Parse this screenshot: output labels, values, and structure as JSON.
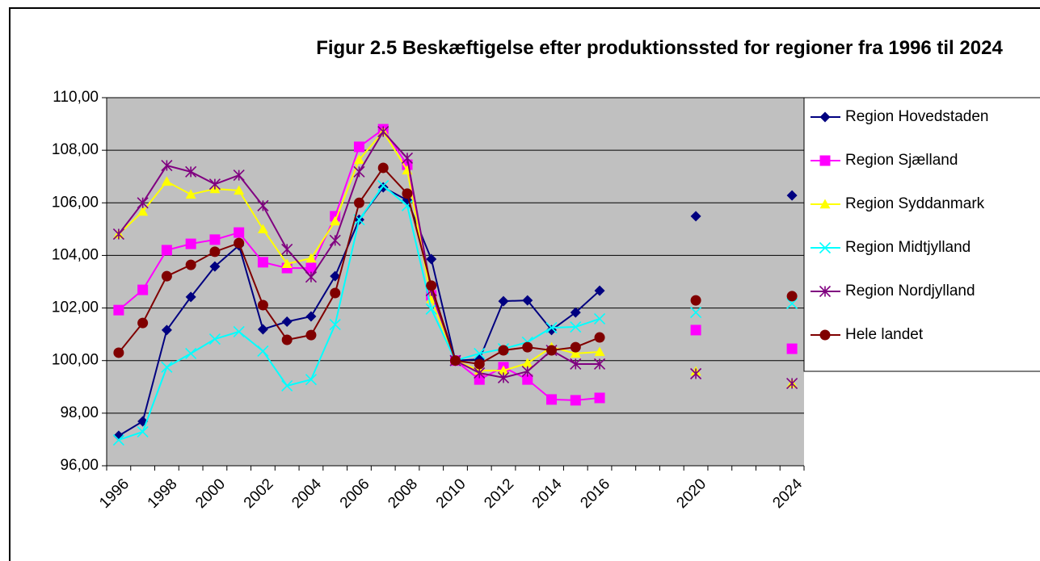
{
  "chart_data": {
    "type": "line",
    "title": "Figur 2.5 Beskæftigelse efter produktionssted for regioner fra 1996 til 2024",
    "categories": [
      "1996",
      null,
      "1998",
      null,
      "2000",
      null,
      "2002",
      null,
      "2004",
      null,
      "2006",
      null,
      "2008",
      null,
      "2010",
      null,
      "2012",
      null,
      "2014",
      null,
      "2016",
      null,
      null,
      null,
      "2020",
      null,
      null,
      null,
      "2024"
    ],
    "ylim": [
      96,
      110
    ],
    "yticks": [
      {
        "value": 96,
        "label": "96,00"
      },
      {
        "value": 98,
        "label": "98,00"
      },
      {
        "value": 100,
        "label": "100,00"
      },
      {
        "value": 102,
        "label": "102,00"
      },
      {
        "value": 104,
        "label": "104,00"
      },
      {
        "value": 106,
        "label": "106,00"
      },
      {
        "value": 108,
        "label": "108,00"
      },
      {
        "value": 110,
        "label": "110,00"
      }
    ],
    "grid": true,
    "legend": "right",
    "series": [
      {
        "name": "Region Hovedstaden",
        "color": "#000080",
        "marker": "diamond",
        "values": [
          97.14,
          97.69,
          101.16,
          102.42,
          103.58,
          104.38,
          101.19,
          101.48,
          101.68,
          103.21,
          105.36,
          106.59,
          106.1,
          103.86,
          100.0,
          100.05,
          102.26,
          102.29,
          101.16,
          101.83,
          102.66,
          null,
          null,
          null,
          105.49,
          null,
          null,
          null,
          106.28
        ]
      },
      {
        "name": "Region Sjælland",
        "color": "#ff00ff",
        "marker": "square",
        "values": [
          101.92,
          102.69,
          104.2,
          104.44,
          104.6,
          104.87,
          103.74,
          103.52,
          103.52,
          105.49,
          108.13,
          108.8,
          107.45,
          102.48,
          100.0,
          99.28,
          99.75,
          99.28,
          98.52,
          98.49,
          98.58,
          null,
          null,
          null,
          101.16,
          null,
          null,
          null,
          100.45
        ]
      },
      {
        "name": "Region Syddanmark",
        "color": "#ffff00",
        "marker": "triangle",
        "values": [
          104.81,
          105.67,
          106.81,
          106.32,
          106.53,
          106.47,
          105.0,
          103.68,
          103.89,
          105.3,
          107.64,
          108.71,
          107.24,
          102.35,
          100.0,
          99.62,
          99.62,
          99.9,
          100.51,
          100.27,
          100.33,
          null,
          null,
          null,
          99.59,
          null,
          null,
          null,
          99.13
        ]
      },
      {
        "name": "Region Midtjylland",
        "color": "#00ffff",
        "marker": "x",
        "values": [
          96.98,
          97.29,
          99.75,
          100.27,
          100.82,
          101.1,
          100.36,
          99.04,
          99.28,
          101.37,
          105.36,
          106.65,
          105.89,
          101.96,
          100.0,
          100.27,
          100.45,
          100.7,
          101.25,
          101.28,
          101.59,
          null,
          null,
          null,
          101.83,
          null,
          null,
          null,
          102.17
        ]
      },
      {
        "name": "Region Nordjylland",
        "color": "#800080",
        "marker": "star",
        "values": [
          104.81,
          106.0,
          107.42,
          107.18,
          106.71,
          107.05,
          105.89,
          104.23,
          103.18,
          104.57,
          107.18,
          108.71,
          107.7,
          102.66,
          100.0,
          99.53,
          99.35,
          99.59,
          100.39,
          99.87,
          99.87,
          null,
          null,
          null,
          99.5,
          null,
          null,
          null,
          99.13
        ]
      },
      {
        "name": "Hele landet",
        "color": "#800000",
        "marker": "circle",
        "values": [
          100.3,
          101.43,
          103.21,
          103.64,
          104.14,
          104.47,
          102.11,
          100.79,
          100.97,
          102.57,
          106.0,
          107.33,
          106.35,
          102.85,
          100.0,
          99.87,
          100.39,
          100.51,
          100.39,
          100.51,
          100.88,
          null,
          null,
          null,
          102.29,
          null,
          null,
          null,
          102.45
        ]
      }
    ]
  }
}
